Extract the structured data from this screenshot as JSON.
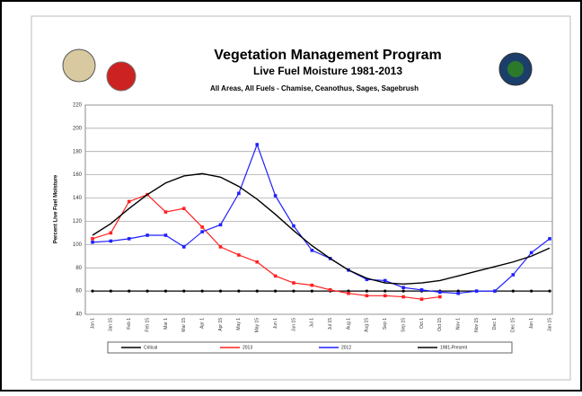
{
  "chart_data": {
    "type": "line",
    "title": "Vegetation Management Program",
    "subtitle": "Live Fuel Moisture 1981-2013",
    "description": "All Areas, All Fuels - Chamise, Ceanothus, Sages, Sagebrush",
    "y_label": "Percent Live Fuel Moisture",
    "categories": [
      "Jan 1",
      "Jan 15",
      "Feb 1",
      "Feb 15",
      "Mar 1",
      "Mar 15",
      "Apr 1",
      "Apr 15",
      "May 1",
      "May 15",
      "Jun 1",
      "Jun 15",
      "Jul 1",
      "Jul 15",
      "Aug 1",
      "Aug 15",
      "Sep 1",
      "Sep 15",
      "Oct 1",
      "Oct 15",
      "Nov 1",
      "Nov 15",
      "Dec 1",
      "Dec 15",
      "Jan 1",
      "Jan 15"
    ],
    "ylim": [
      40,
      220
    ],
    "yticks": [
      40,
      60,
      80,
      100,
      120,
      140,
      160,
      180,
      200,
      220
    ],
    "grid": true,
    "series": [
      {
        "name": "Critical",
        "color": "#000000",
        "values": [
          60,
          60,
          60,
          60,
          60,
          60,
          60,
          60,
          60,
          60,
          60,
          60,
          60,
          60,
          60,
          60,
          60,
          60,
          60,
          60,
          60,
          60,
          60,
          60,
          60,
          60
        ]
      },
      {
        "name": "2013",
        "color": "#ff2020",
        "values": [
          105,
          110,
          137,
          143,
          128,
          131,
          115,
          98,
          91,
          85,
          73,
          67,
          65,
          61,
          58,
          56,
          56,
          55,
          53,
          55,
          null,
          null,
          null,
          null,
          null,
          null
        ]
      },
      {
        "name": "2012",
        "color": "#2020ff",
        "values": [
          102,
          103,
          105,
          108,
          108,
          98,
          111,
          117,
          144,
          186,
          142,
          116,
          95,
          88,
          78,
          70,
          69,
          63,
          61,
          59,
          58,
          60,
          60,
          74,
          93,
          105
        ]
      },
      {
        "name": "1981-Present",
        "color": "#000000",
        "values": [
          108,
          118,
          131,
          143,
          153,
          159,
          161,
          158,
          150,
          139,
          126,
          112,
          99,
          88,
          78,
          71,
          67,
          66,
          67,
          69,
          73,
          77,
          81,
          85,
          90,
          97
        ]
      }
    ]
  }
}
